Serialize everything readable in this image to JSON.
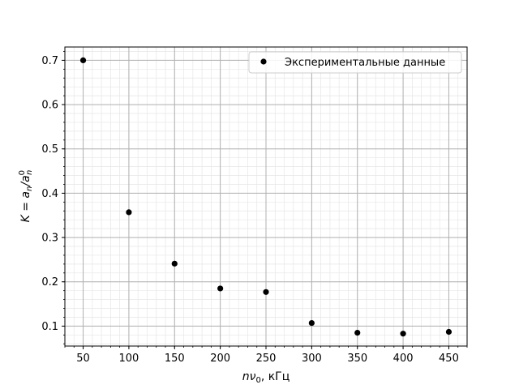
{
  "chart_data": {
    "type": "scatter",
    "title": "",
    "xlabel_var": "nν",
    "xlabel_sub": "0",
    "xlabel_unit": ", кГц",
    "ylabel_lhs": "K = a",
    "ylabel_sub1": "n",
    "ylabel_mid": "/a",
    "ylabel_sup": "0",
    "ylabel_sub2": "n",
    "xlim": [
      30,
      470
    ],
    "ylim": [
      0.055,
      0.73
    ],
    "xticks": [
      50,
      100,
      150,
      200,
      250,
      300,
      350,
      400,
      450
    ],
    "yticks": [
      0.1,
      0.2,
      0.3,
      0.4,
      0.5,
      0.6,
      0.7
    ],
    "grid": true,
    "minor_grid": true,
    "legend_position": "top-right",
    "series": [
      {
        "name": "Экспериментальные данные",
        "color": "#000000",
        "marker": "circle",
        "x": [
          50,
          100,
          150,
          200,
          250,
          300,
          350,
          400,
          450
        ],
        "y": [
          0.7,
          0.357,
          0.241,
          0.185,
          0.177,
          0.107,
          0.085,
          0.083,
          0.087
        ]
      }
    ]
  }
}
